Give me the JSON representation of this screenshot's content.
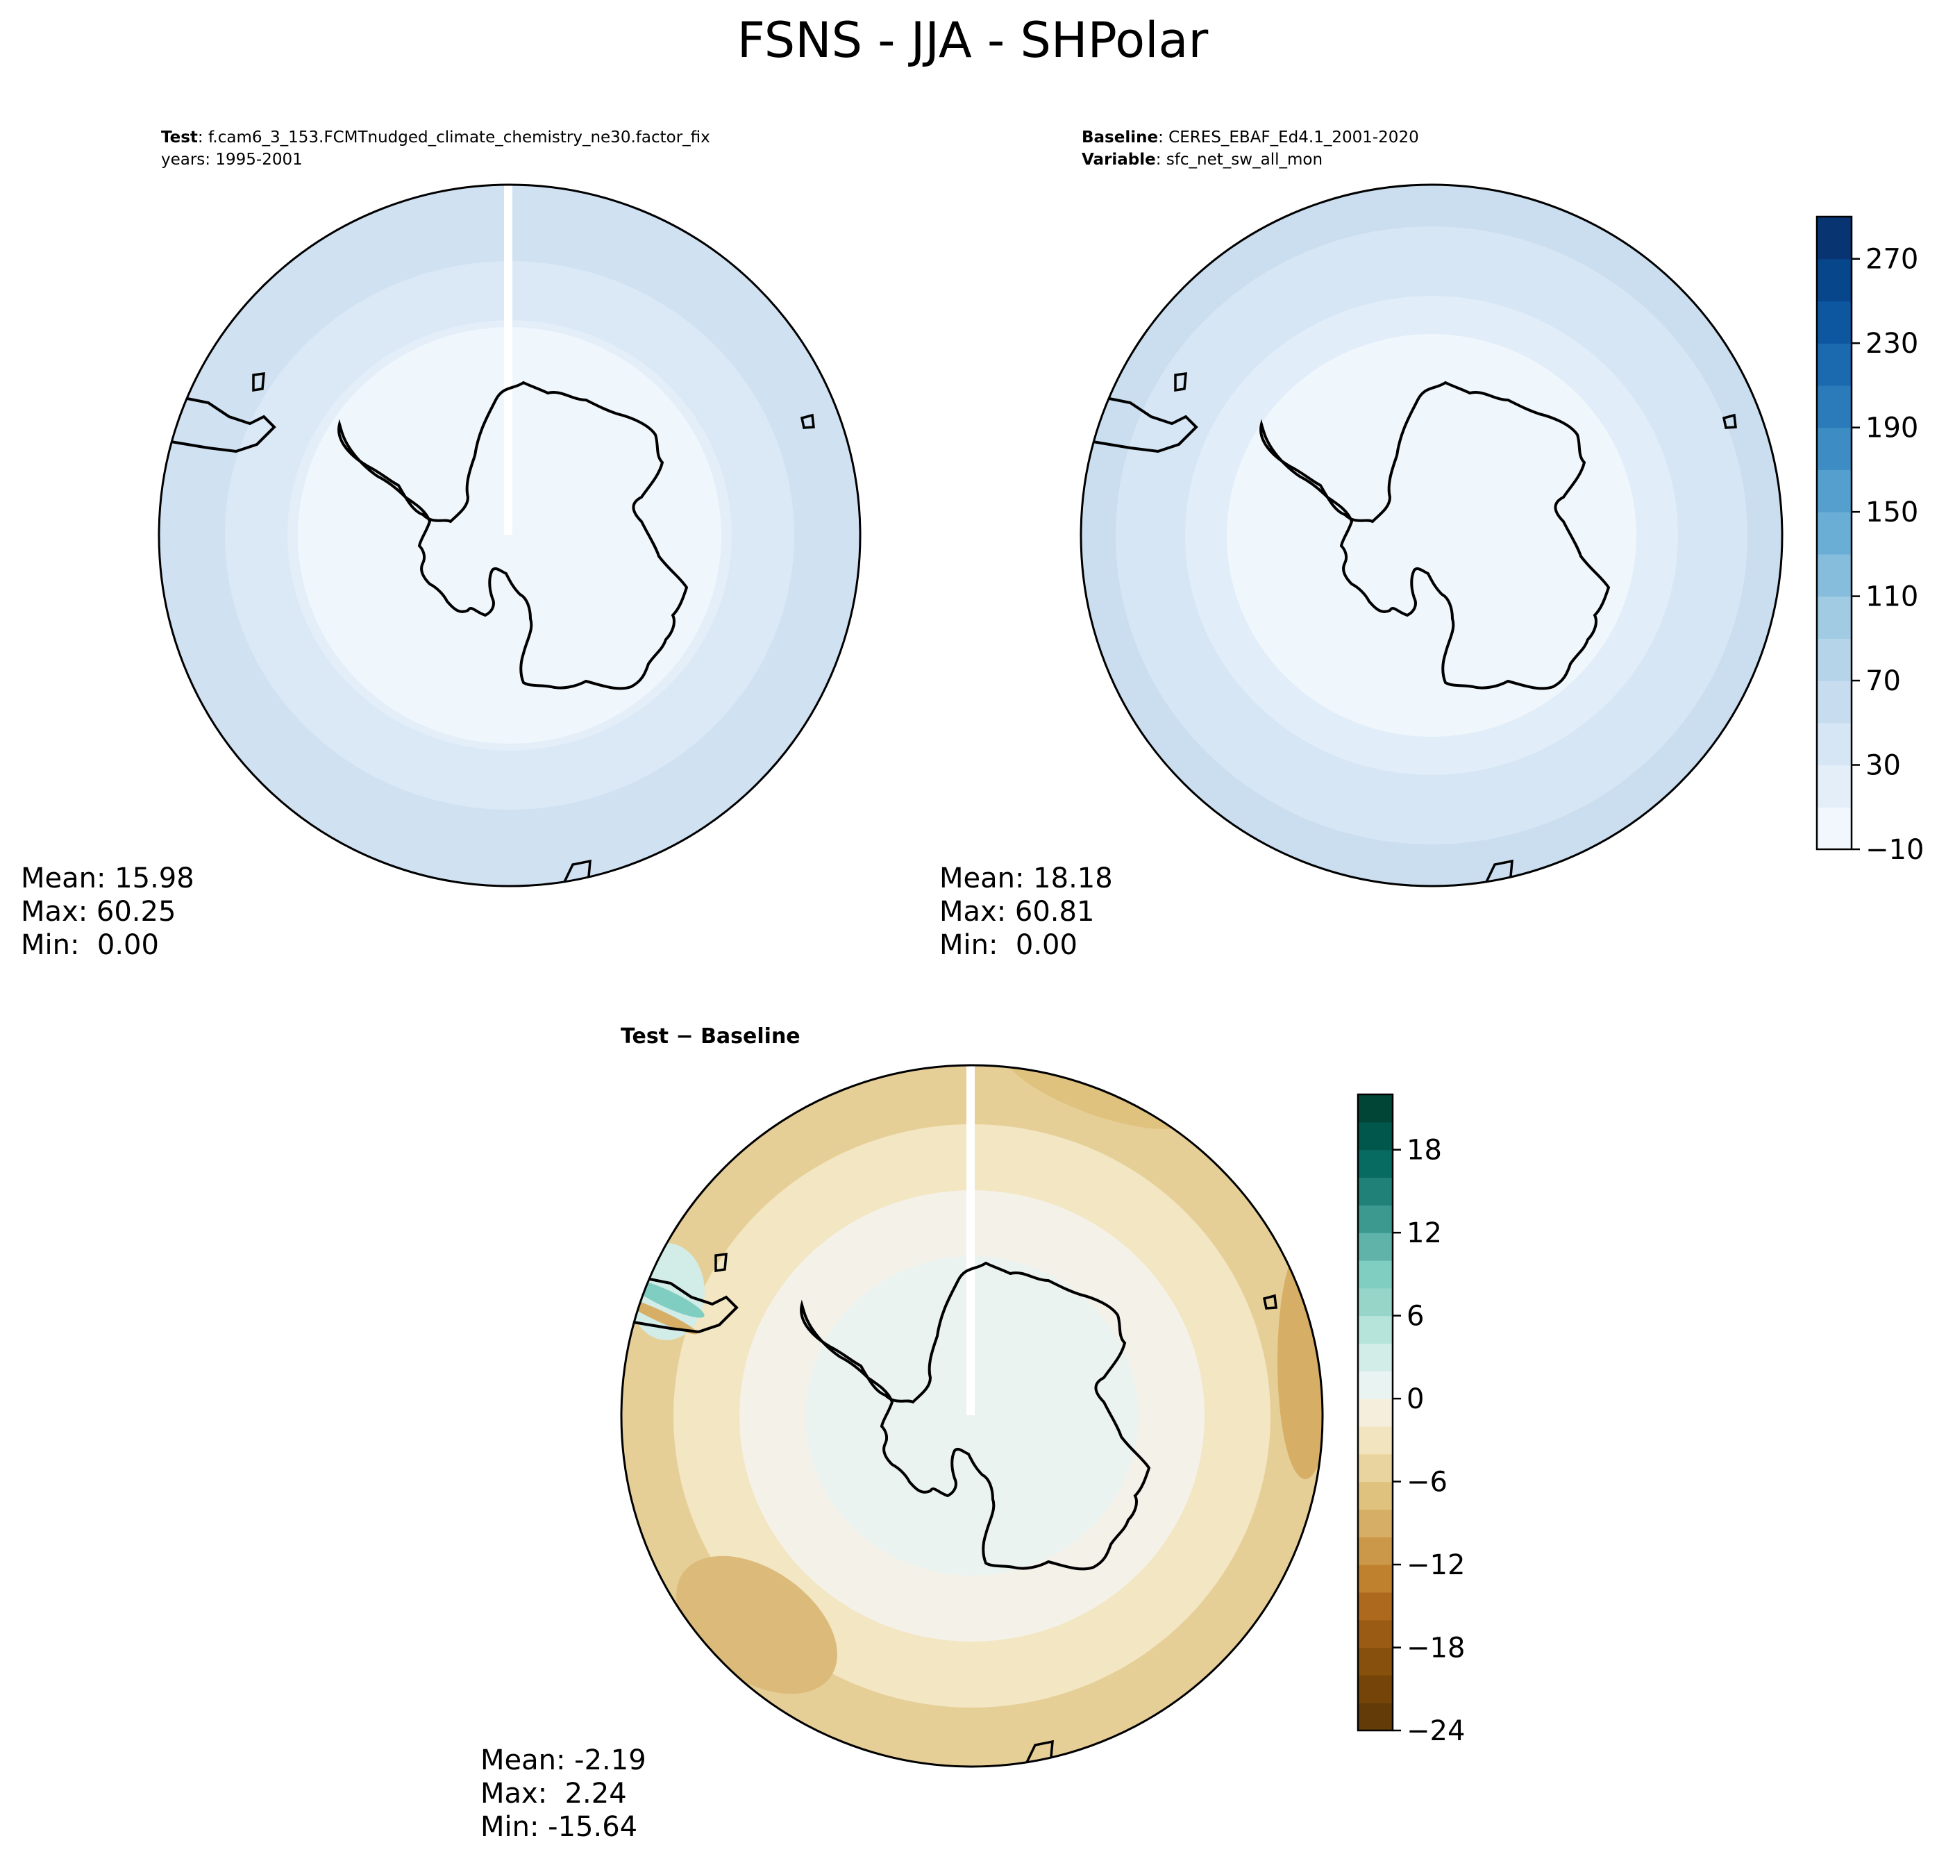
{
  "figure": {
    "title": "FSNS - JJA - SHPolar"
  },
  "chart_data": [
    {
      "type": "heatmap",
      "panel": "test",
      "label_key": "Test",
      "label_sep": ": ",
      "label_value": "f.cam6_3_153.FCMTnudged_climate_chemistry_ne30.factor_fix",
      "line2": "years: 1995-2001",
      "projection": "south polar stereographic",
      "zones": [
        {
          "ring": "outer",
          "value": 50,
          "color": "#d0e1f2"
        },
        {
          "ring": "mid",
          "value": 30,
          "color": "#dbe9f6"
        },
        {
          "ring": "inner",
          "value": 15,
          "color": "#e3eef9"
        },
        {
          "ring": "core",
          "value": 5,
          "color": "#eff6fc"
        }
      ],
      "stats": {
        "mean": "Mean: 15.98",
        "max": "Max: 60.25",
        "min": "Min:  0.00"
      }
    },
    {
      "type": "heatmap",
      "panel": "baseline",
      "label_key": "Baseline",
      "label_sep": ": ",
      "label_value": "CERES_EBAF_Ed4.1_2001-2020",
      "line2_key": "Variable",
      "line2_sep": ": ",
      "line2_value": "sfc_net_sw_all_mon",
      "projection": "south polar stereographic",
      "zones": [
        {
          "ring": "outer",
          "value": 55,
          "color": "#cadef0"
        },
        {
          "ring": "mid",
          "value": 35,
          "color": "#d6e6f4"
        },
        {
          "ring": "inner",
          "value": 20,
          "color": "#e1edf8"
        },
        {
          "ring": "core",
          "value": 5,
          "color": "#eff6fc"
        }
      ],
      "stats": {
        "mean": "Mean: 18.18",
        "max": "Max: 60.81",
        "min": "Min:  0.00"
      }
    },
    {
      "type": "heatmap",
      "panel": "difference",
      "label_left": "Test",
      "label_op": " − ",
      "label_right": "Baseline",
      "projection": "south polar stereographic",
      "zones": [
        {
          "ring": "outer",
          "value": -8,
          "color": "#e6cf97"
        },
        {
          "ring": "mid",
          "value": -4,
          "color": "#f3e6c3"
        },
        {
          "ring": "inner",
          "value": -1,
          "color": "#f4f1e8"
        },
        {
          "ring": "core",
          "value": 1,
          "color": "#ebf3f1"
        }
      ],
      "stats": {
        "mean": "Mean: -2.19",
        "max": "Max:  2.24",
        "min": "Min: -15.64"
      }
    }
  ],
  "colorbars": [
    {
      "name": "Blues",
      "range": [
        -10,
        290
      ],
      "levels": [
        -10,
        10,
        30,
        50,
        70,
        90,
        110,
        130,
        150,
        170,
        190,
        210,
        230,
        250,
        270,
        290
      ],
      "colors": [
        "#f1f7fd",
        "#e3eef9",
        "#d6e6f4",
        "#c7dcef",
        "#b5d4e9",
        "#a0cbe2",
        "#86bcdc",
        "#6aaed6",
        "#549fcd",
        "#3d8dc4",
        "#2b7bba",
        "#1b69af",
        "#0d57a1",
        "#08468b",
        "#083472"
      ],
      "ticks": [
        -10,
        30,
        70,
        110,
        150,
        190,
        230,
        270
      ],
      "tick_labels": [
        "−10",
        "30",
        "70",
        "110",
        "150",
        "190",
        "230",
        "270"
      ]
    },
    {
      "name": "BrBG",
      "range": [
        -24,
        22
      ],
      "levels": [
        -24,
        -22,
        -20,
        -18,
        -16,
        -14,
        -12,
        -10,
        -8,
        -6,
        -4,
        -2,
        0,
        2,
        4,
        6,
        8,
        10,
        12,
        14,
        16,
        18,
        20,
        22
      ],
      "colors": [
        "#633b09",
        "#744408",
        "#87500c",
        "#9a5b14",
        "#ad6a1f",
        "#bf812d",
        "#cb9849",
        "#d7ae66",
        "#dfc27d",
        "#e9d49f",
        "#f2e4bf",
        "#f5eedc",
        "#e9f3f1",
        "#d2ece7",
        "#b6e3da",
        "#97d5c9",
        "#80cdc1",
        "#5fb3a9",
        "#3c998f",
        "#1f8178",
        "#076b62",
        "#01574b",
        "#004536"
      ],
      "ticks": [
        -24,
        -18,
        -12,
        -6,
        0,
        6,
        12,
        18
      ],
      "tick_labels": [
        "−24",
        "−18",
        "−12",
        "−6",
        "0",
        "6",
        "12",
        "18"
      ]
    }
  ]
}
